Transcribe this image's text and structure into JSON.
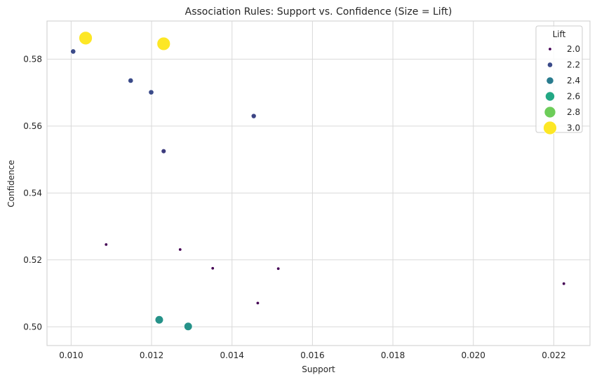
{
  "chart_data": {
    "type": "scatter",
    "title": "Association Rules: Support vs. Confidence (Size = Lift)",
    "xlabel": "Support",
    "ylabel": "Confidence",
    "xlim": [
      0.0094,
      0.0229
    ],
    "ylim": [
      0.4944,
      0.5914
    ],
    "xticks": [
      0.01,
      0.012,
      0.014,
      0.016,
      0.018,
      0.02,
      0.022
    ],
    "xtick_labels": [
      "0.010",
      "0.012",
      "0.014",
      "0.016",
      "0.018",
      "0.020",
      "0.022"
    ],
    "yticks": [
      0.5,
      0.52,
      0.54,
      0.56,
      0.58
    ],
    "ytick_labels": [
      "0.50",
      "0.52",
      "0.54",
      "0.56",
      "0.58"
    ],
    "grid": true,
    "colormap": "viridis",
    "size_encoding": "Lift",
    "color_encoding": "Lift",
    "points": [
      {
        "x": 0.01036,
        "y": 0.5863,
        "lift": 3.0
      },
      {
        "x": 0.0123,
        "y": 0.5846,
        "lift": 3.0
      },
      {
        "x": 0.01005,
        "y": 0.5823,
        "lift": 2.2
      },
      {
        "x": 0.01148,
        "y": 0.5736,
        "lift": 2.2
      },
      {
        "x": 0.01199,
        "y": 0.5701,
        "lift": 2.2
      },
      {
        "x": 0.01454,
        "y": 0.563,
        "lift": 2.18
      },
      {
        "x": 0.0123,
        "y": 0.5525,
        "lift": 2.16
      },
      {
        "x": 0.01087,
        "y": 0.5246,
        "lift": 2.0
      },
      {
        "x": 0.01271,
        "y": 0.5231,
        "lift": 2.0
      },
      {
        "x": 0.01352,
        "y": 0.5175,
        "lift": 2.0
      },
      {
        "x": 0.01515,
        "y": 0.5174,
        "lift": 2.0
      },
      {
        "x": 0.02225,
        "y": 0.5129,
        "lift": 2.0
      },
      {
        "x": 0.01464,
        "y": 0.5071,
        "lift": 1.96
      },
      {
        "x": 0.01219,
        "y": 0.5021,
        "lift": 2.5
      },
      {
        "x": 0.01291,
        "y": 0.5001,
        "lift": 2.5
      }
    ],
    "legend": {
      "title": "Lift",
      "placement": "top-right",
      "entries": [
        {
          "label": "2.0",
          "lift": 2.0,
          "color": "#440154"
        },
        {
          "label": "2.2",
          "lift": 2.2,
          "color": "#3b4b89"
        },
        {
          "label": "2.4",
          "lift": 2.4,
          "color": "#297b8e"
        },
        {
          "label": "2.6",
          "lift": 2.6,
          "color": "#22a884"
        },
        {
          "label": "2.8",
          "lift": 2.8,
          "color": "#6dcd59"
        },
        {
          "label": "3.0",
          "lift": 3.0,
          "color": "#fde725"
        }
      ]
    }
  }
}
